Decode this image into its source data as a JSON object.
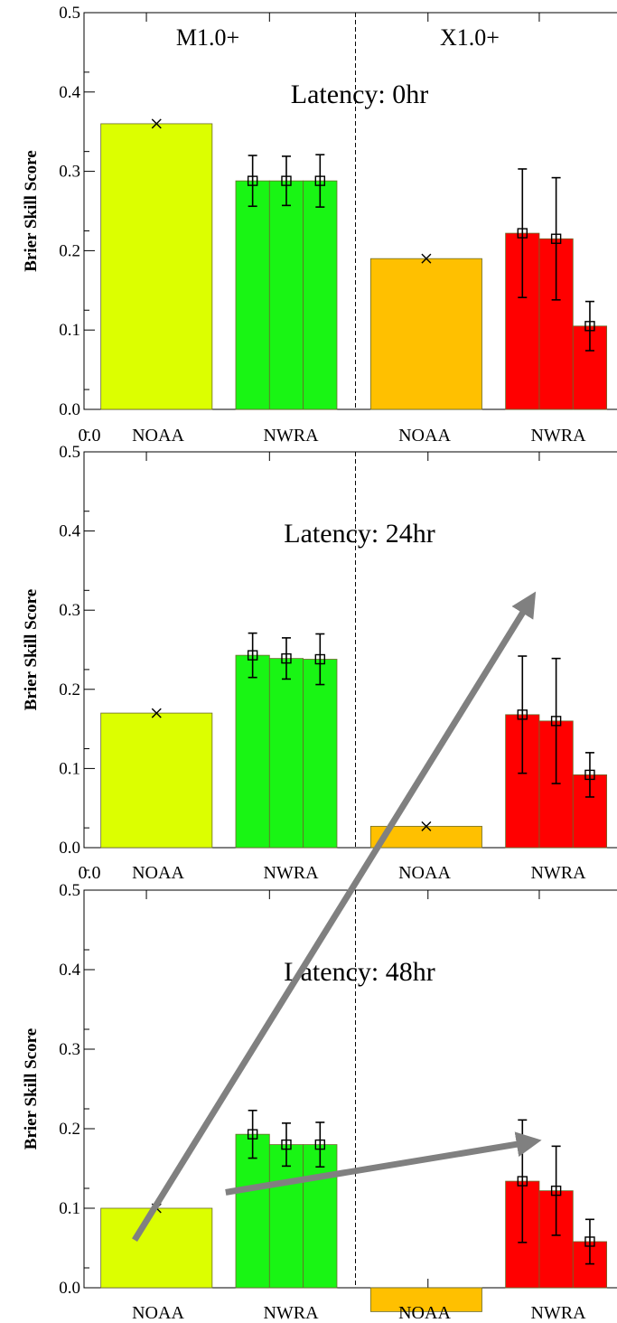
{
  "chart_data": [
    {
      "type": "bar",
      "title": "Latency: 0hr",
      "ylabel": "Brier Skill Score",
      "ylim": [
        0,
        0.5
      ],
      "yticks": [
        "0.0",
        "0.1",
        "0.2",
        "0.3",
        "0.4",
        "0.5"
      ],
      "origin_label": "0.0",
      "group_titles": [
        "M1.0+",
        "X1.0+"
      ],
      "categories": [
        "NOAA",
        "NWRA",
        "NOAA",
        "NWRA"
      ],
      "bars": [
        {
          "group": "M1.0+",
          "category": "NOAA",
          "values": [
            0.36
          ],
          "color": "#dcff00",
          "marker": "x"
        },
        {
          "group": "M1.0+",
          "category": "NWRA",
          "values": [
            0.288,
            0.288,
            0.288
          ],
          "errors": [
            0.032,
            0.031,
            0.033
          ],
          "color": "#19f514",
          "marker": "square"
        },
        {
          "group": "X1.0+",
          "category": "NOAA",
          "values": [
            0.19
          ],
          "color": "#ffc000",
          "marker": "x"
        },
        {
          "group": "X1.0+",
          "category": "NWRA",
          "values": [
            0.222,
            0.215,
            0.105
          ],
          "errors": [
            0.081,
            0.077,
            0.031
          ],
          "color": "#ff0000",
          "marker": "square"
        }
      ]
    },
    {
      "type": "bar",
      "title": "Latency: 24hr",
      "ylabel": "Brier Skill Score",
      "ylim": [
        0,
        0.5
      ],
      "yticks": [
        "0.0",
        "0.1",
        "0.2",
        "0.3",
        "0.4",
        "0.5"
      ],
      "origin_label": "0.0",
      "categories": [
        "NOAA",
        "NWRA",
        "NOAA",
        "NWRA"
      ],
      "bars": [
        {
          "group": "M1.0+",
          "category": "NOAA",
          "values": [
            0.17
          ],
          "color": "#dcff00",
          "marker": "x"
        },
        {
          "group": "M1.0+",
          "category": "NWRA",
          "values": [
            0.243,
            0.239,
            0.238
          ],
          "errors": [
            0.028,
            0.026,
            0.032
          ],
          "color": "#19f514",
          "marker": "square"
        },
        {
          "group": "X1.0+",
          "category": "NOAA",
          "values": [
            0.027
          ],
          "color": "#ffc000",
          "marker": "x"
        },
        {
          "group": "X1.0+",
          "category": "NWRA",
          "values": [
            0.168,
            0.16,
            0.092
          ],
          "errors": [
            0.074,
            0.079,
            0.028
          ],
          "color": "#ff0000",
          "marker": "square"
        }
      ]
    },
    {
      "type": "bar",
      "title": "Latency: 48hr",
      "ylabel": "Brier Skill Score",
      "ylim": [
        0,
        0.5
      ],
      "yticks": [
        "0.0",
        "0.1",
        "0.2",
        "0.3",
        "0.4",
        "0.5"
      ],
      "categories": [
        "NOAA",
        "NWRA",
        "NOAA",
        "NWRA"
      ],
      "bars": [
        {
          "group": "M1.0+",
          "category": "NOAA",
          "values": [
            0.1
          ],
          "color": "#dcff00",
          "marker": "x"
        },
        {
          "group": "M1.0+",
          "category": "NWRA",
          "values": [
            0.193,
            0.18,
            0.18
          ],
          "errors": [
            0.03,
            0.027,
            0.028
          ],
          "color": "#19f514",
          "marker": "square"
        },
        {
          "group": "X1.0+",
          "category": "NOAA",
          "values": [
            -0.03
          ],
          "color": "#ffc000",
          "marker": "none"
        },
        {
          "group": "X1.0+",
          "category": "NWRA",
          "values": [
            0.134,
            0.122,
            0.058
          ],
          "errors": [
            0.077,
            0.056,
            0.028
          ],
          "color": "#ff0000",
          "marker": "square"
        }
      ]
    }
  ],
  "annotations": {
    "arrow_color": "#808080",
    "arrows": [
      {
        "from": {
          "panel": 2,
          "x_slot": 1.5,
          "y": 0.06
        },
        "to": {
          "panel": 1,
          "x_slot": 13.2,
          "y": 0.31
        }
      },
      {
        "from": {
          "panel": 2,
          "x_slot": 4.2,
          "y": 0.12
        },
        "to": {
          "panel": 2,
          "x_slot": 13.2,
          "y": 0.183
        }
      }
    ]
  }
}
